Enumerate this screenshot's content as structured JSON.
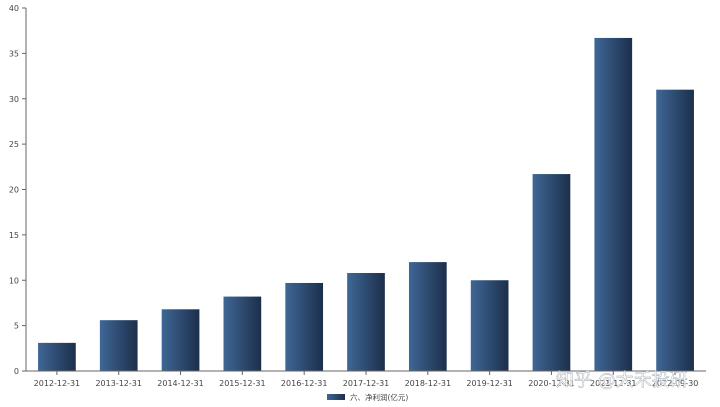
{
  "chart_data": {
    "type": "bar",
    "categories": [
      "2012-12-31",
      "2013-12-31",
      "2014-12-31",
      "2015-12-31",
      "2016-12-31",
      "2017-12-31",
      "2018-12-31",
      "2019-12-31",
      "2020-12-31",
      "2021-12-31",
      "2022-09-30"
    ],
    "series": [
      {
        "name": "六、净利润(亿元)",
        "values": [
          3.1,
          5.6,
          6.8,
          8.2,
          9.7,
          10.8,
          12.0,
          10.0,
          21.7,
          36.7,
          31.0
        ]
      }
    ],
    "yticks": [
      0,
      5,
      10,
      15,
      20,
      25,
      30,
      35,
      40
    ],
    "ylim": [
      0,
      40
    ],
    "grid": false,
    "legend_position": "bottom-center",
    "bar_color_light": "#3f6796",
    "bar_color_dark": "#1c2f4b"
  },
  "watermark": "知乎 @大禾投研"
}
